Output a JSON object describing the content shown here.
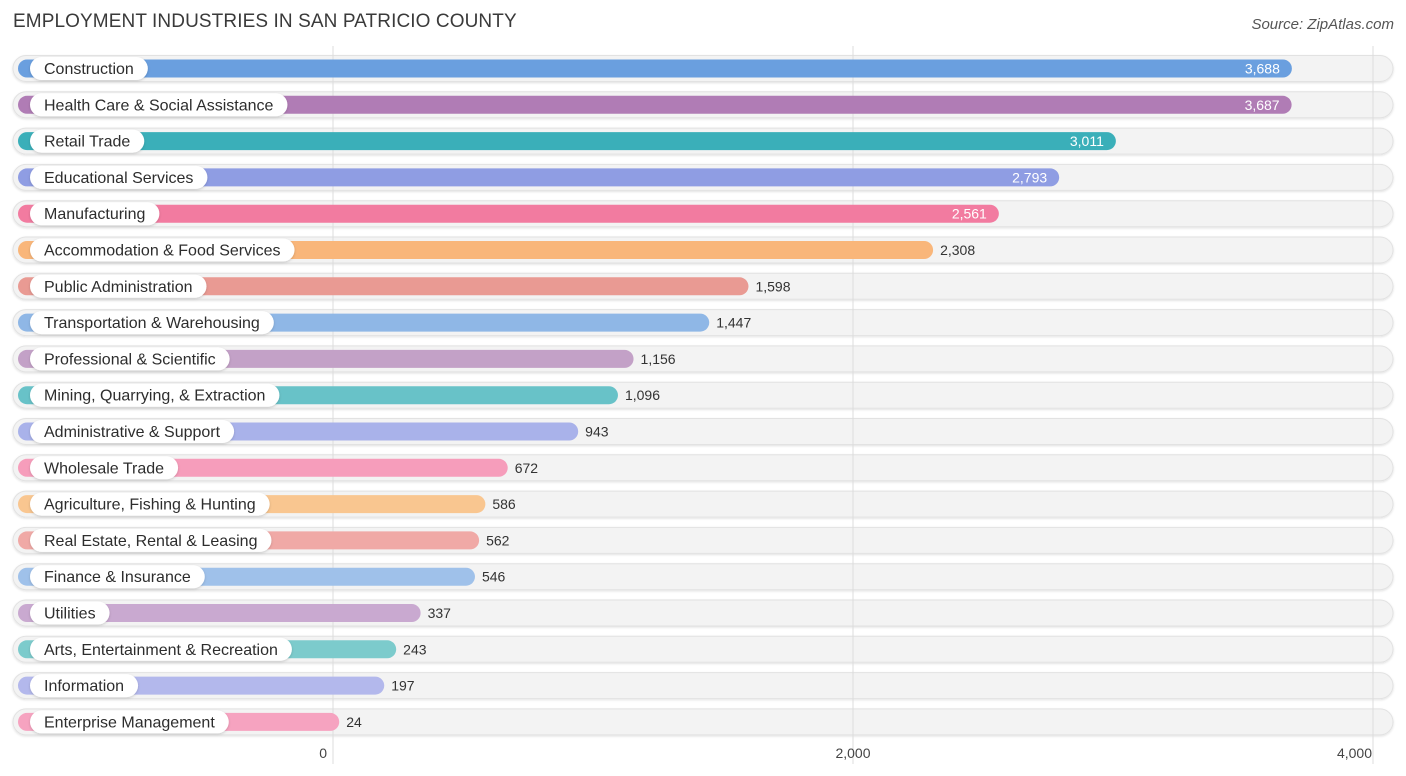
{
  "header": {
    "title": "EMPLOYMENT INDUSTRIES IN SAN PATRICIO COUNTY",
    "source": "Source: ZipAtlas.com"
  },
  "chart_data": {
    "type": "bar",
    "orientation": "horizontal",
    "title": "EMPLOYMENT INDUSTRIES IN SAN PATRICIO COUNTY",
    "xlabel": "",
    "ylabel": "",
    "xlim": [
      0,
      4000
    ],
    "ticks": [
      0,
      2000,
      4000
    ],
    "tick_labels": [
      "0",
      "2,000",
      "4,000"
    ],
    "grid": true,
    "categories": [
      "Construction",
      "Health Care & Social Assistance",
      "Retail Trade",
      "Educational Services",
      "Manufacturing",
      "Accommodation & Food Services",
      "Public Administration",
      "Transportation & Warehousing",
      "Professional & Scientific",
      "Mining, Quarrying, & Extraction",
      "Administrative & Support",
      "Wholesale Trade",
      "Agriculture, Fishing & Hunting",
      "Real Estate, Rental & Leasing",
      "Finance & Insurance",
      "Utilities",
      "Arts, Entertainment & Recreation",
      "Information",
      "Enterprise Management"
    ],
    "values": [
      3688,
      3687,
      3011,
      2793,
      2561,
      2308,
      1598,
      1447,
      1156,
      1096,
      943,
      672,
      586,
      562,
      546,
      337,
      243,
      197,
      24
    ],
    "value_labels": [
      "3,688",
      "3,687",
      "3,011",
      "2,793",
      "2,561",
      "2,308",
      "1,598",
      "1,447",
      "1,156",
      "1,096",
      "943",
      "672",
      "586",
      "562",
      "546",
      "337",
      "243",
      "197",
      "24"
    ],
    "colors": [
      "#6a9fdf",
      "#b07cb5",
      "#3aafb9",
      "#8f9de3",
      "#f27ba0",
      "#f9b67a",
      "#e99a93",
      "#8fb7e6",
      "#c3a1c7",
      "#68c2c8",
      "#a9b2ea",
      "#f69dbb",
      "#f9c690",
      "#f0a9a6",
      "#9fc1ea",
      "#c9a9d0",
      "#7ccbcc",
      "#b3b8ec",
      "#f6a3c0"
    ]
  }
}
